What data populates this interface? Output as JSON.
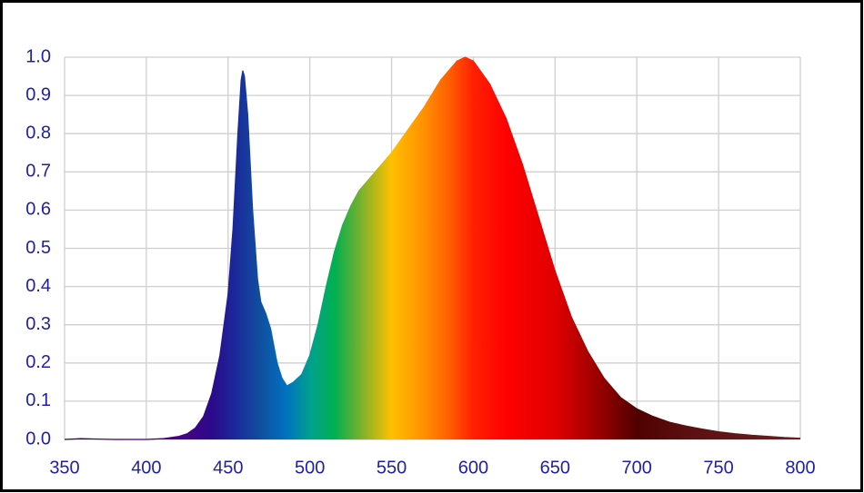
{
  "chart_data": {
    "type": "area",
    "x": [
      350,
      360,
      370,
      380,
      390,
      400,
      410,
      420,
      425,
      430,
      435,
      440,
      445,
      450,
      453,
      456,
      458,
      459,
      460,
      462,
      465,
      468,
      470,
      473,
      476,
      480,
      483,
      486,
      490,
      495,
      500,
      505,
      510,
      515,
      520,
      525,
      530,
      540,
      550,
      560,
      570,
      580,
      590,
      595,
      600,
      610,
      620,
      630,
      640,
      650,
      660,
      670,
      680,
      690,
      700,
      710,
      720,
      730,
      740,
      750,
      760,
      770,
      780,
      790,
      800
    ],
    "values": [
      0,
      0.002,
      0.001,
      0,
      0,
      0,
      0.002,
      0.008,
      0.015,
      0.03,
      0.06,
      0.12,
      0.22,
      0.38,
      0.55,
      0.8,
      0.94,
      0.965,
      0.95,
      0.85,
      0.6,
      0.42,
      0.36,
      0.33,
      0.29,
      0.2,
      0.16,
      0.14,
      0.15,
      0.17,
      0.22,
      0.3,
      0.4,
      0.49,
      0.56,
      0.61,
      0.65,
      0.7,
      0.75,
      0.81,
      0.87,
      0.94,
      0.99,
      1.0,
      0.99,
      0.93,
      0.84,
      0.72,
      0.58,
      0.44,
      0.32,
      0.23,
      0.16,
      0.11,
      0.08,
      0.06,
      0.045,
      0.035,
      0.027,
      0.02,
      0.015,
      0.011,
      0.008,
      0.005,
      0.003
    ],
    "xlim": [
      350,
      800
    ],
    "xticks": [
      350,
      400,
      450,
      500,
      550,
      600,
      650,
      700,
      750,
      800
    ],
    "ylim": [
      0,
      1
    ],
    "yticks": [
      {
        "value": 0,
        "label": "0.0"
      },
      {
        "value": 0.1,
        "label": "0.1"
      },
      {
        "value": 0.2,
        "label": "0.2"
      },
      {
        "value": 0.3,
        "label": "0.3"
      },
      {
        "value": 0.4,
        "label": "0.4"
      },
      {
        "value": 0.5,
        "label": "0.5"
      },
      {
        "value": 0.6,
        "label": "0.6"
      },
      {
        "value": 0.7,
        "label": "0.7"
      },
      {
        "value": 0.8,
        "label": "0.8"
      },
      {
        "value": 0.9,
        "label": "0.9"
      },
      {
        "value": 1,
        "label": "1.0"
      }
    ],
    "grid": true
  }
}
